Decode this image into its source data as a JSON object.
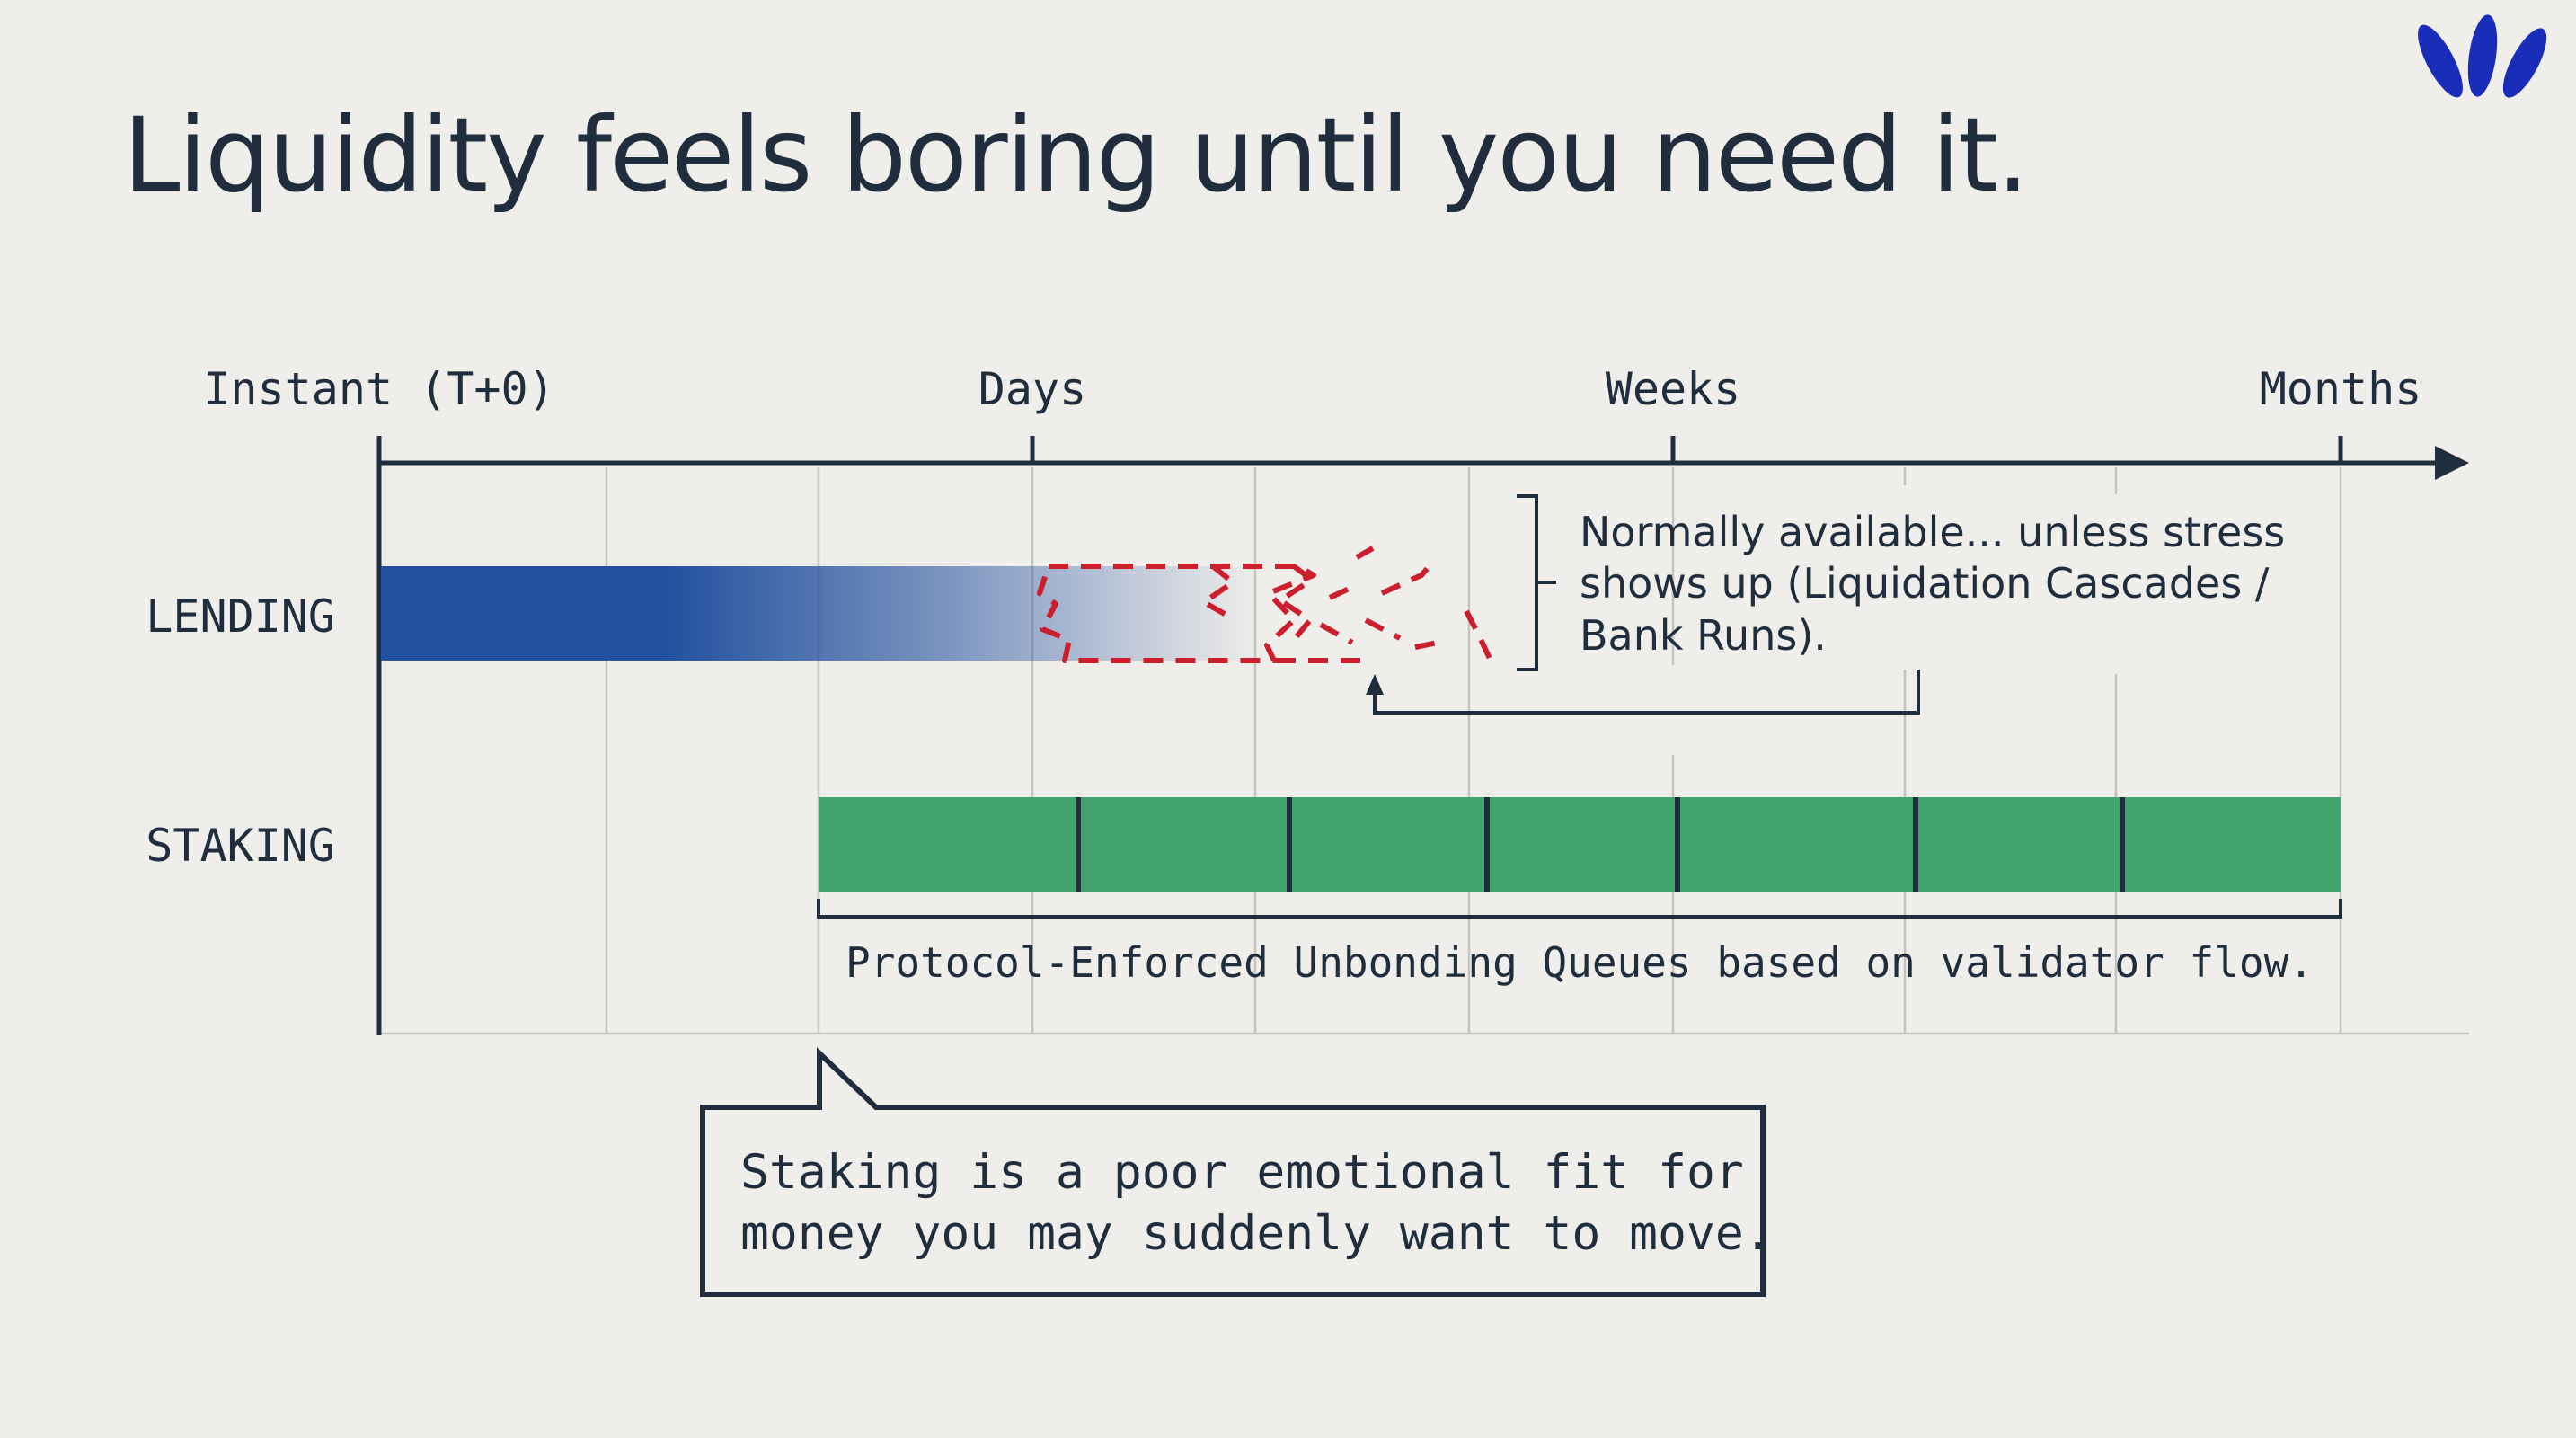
{
  "title": "Liquidity feels boring until you need it.",
  "brand": {
    "logo_color": "#1a2db8"
  },
  "timeline": {
    "ticks": [
      "Instant (T+0)",
      "Days",
      "Weeks",
      "Months"
    ],
    "rows": [
      {
        "label": "LENDING",
        "color": "#22509f"
      },
      {
        "label": "STAKING",
        "color": "#42a46c"
      }
    ]
  },
  "annotations": {
    "lending_note": {
      "line1": "Normally available... unless stress",
      "line2": "shows up (Liquidation Cascades /",
      "line3": "Bank Runs)."
    },
    "staking_note": "Protocol-Enforced Unbonding Queues based on validator flow.",
    "callout": {
      "line1": "Staking is a poor emotional fit for",
      "line2": "money you may suddenly want to move."
    }
  },
  "colors": {
    "background": "#f0eeea",
    "ink": "#1f2d3d",
    "grid": "#c5c3bd",
    "risk": "#cc1f2d"
  }
}
